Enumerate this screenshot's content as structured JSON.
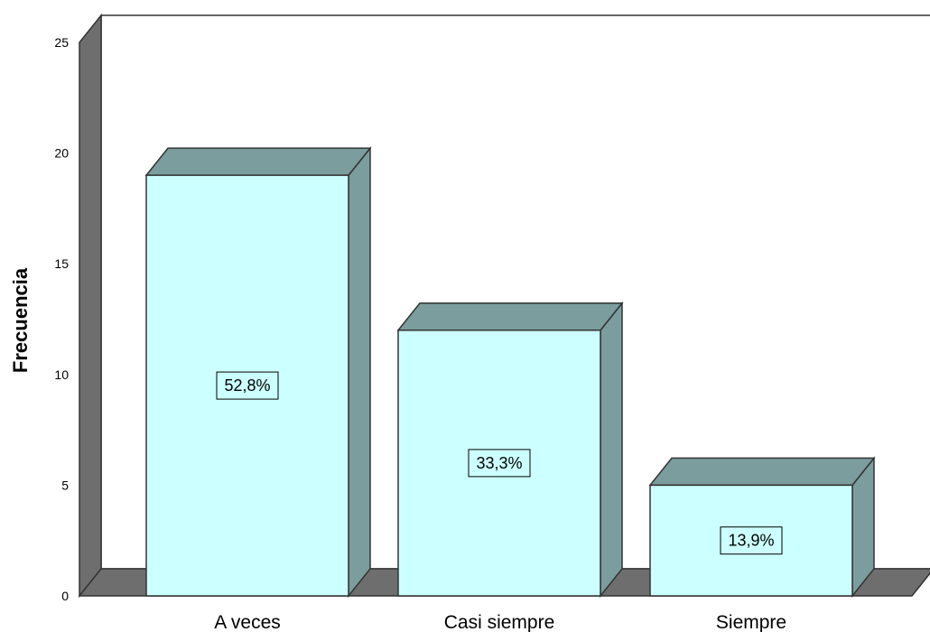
{
  "chart_data": {
    "type": "bar",
    "categories": [
      "A veces",
      "Casi siempre",
      "Siempre"
    ],
    "values": [
      19,
      12,
      5
    ],
    "data_labels": [
      "52,8%",
      "33,3%",
      "13,9%"
    ],
    "ylabel": "Frecuencia",
    "ylim": [
      0,
      25
    ],
    "yticks": [
      0,
      5,
      10,
      15,
      20,
      25
    ],
    "grid": false,
    "legend": "none",
    "style": "3d",
    "colors": {
      "bar_front": "#ccffff",
      "bar_side": "#7b9d9d",
      "floor": "#6e6e6e",
      "wall": "#ffffff",
      "edge": "#333333"
    }
  }
}
